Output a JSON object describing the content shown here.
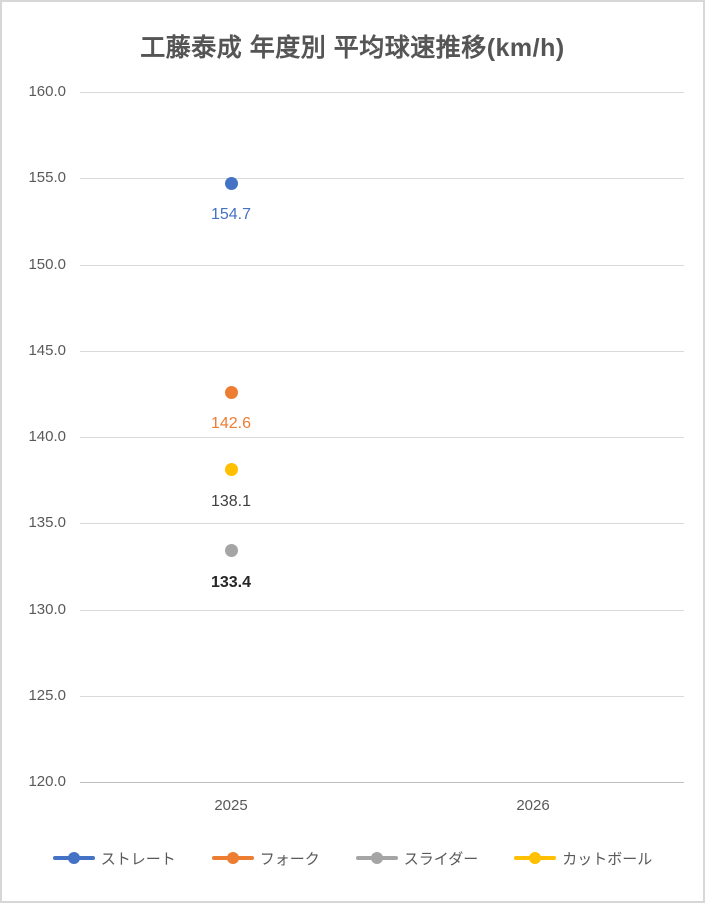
{
  "chart_data": {
    "type": "line",
    "title": "工藤泰成 年度別 平均球速推移(km/h)",
    "categories": [
      "2025",
      "2026"
    ],
    "series": [
      {
        "key": "straight",
        "name": "ストレート",
        "color": "#4472C4",
        "values": [
          154.7,
          null
        ],
        "label_color": "#4472C4",
        "label_bold": false
      },
      {
        "key": "fork",
        "name": "フォーク",
        "color": "#ED7D31",
        "values": [
          142.6,
          null
        ],
        "label_color": "#ED7D31",
        "label_bold": false
      },
      {
        "key": "slider",
        "name": "スライダー",
        "color": "#A5A5A5",
        "values": [
          133.4,
          null
        ],
        "label_color": "#262626",
        "label_bold": true
      },
      {
        "key": "cutball",
        "name": "カットボール",
        "color": "#FFC000",
        "values": [
          138.1,
          null
        ],
        "label_color": "#404040",
        "label_bold": false
      }
    ],
    "y_axis": {
      "min": 120,
      "max": 160,
      "step": 5,
      "tick_decimals": 1
    },
    "grid": true,
    "legend_position": "bottom",
    "colors": {
      "gridline": "#D9D9D9",
      "axis_line": "#BFBFBF",
      "axis_text": "#595959",
      "title_text": "#555555",
      "background": "#FFFFFF",
      "border": "#D7D7D7"
    }
  }
}
